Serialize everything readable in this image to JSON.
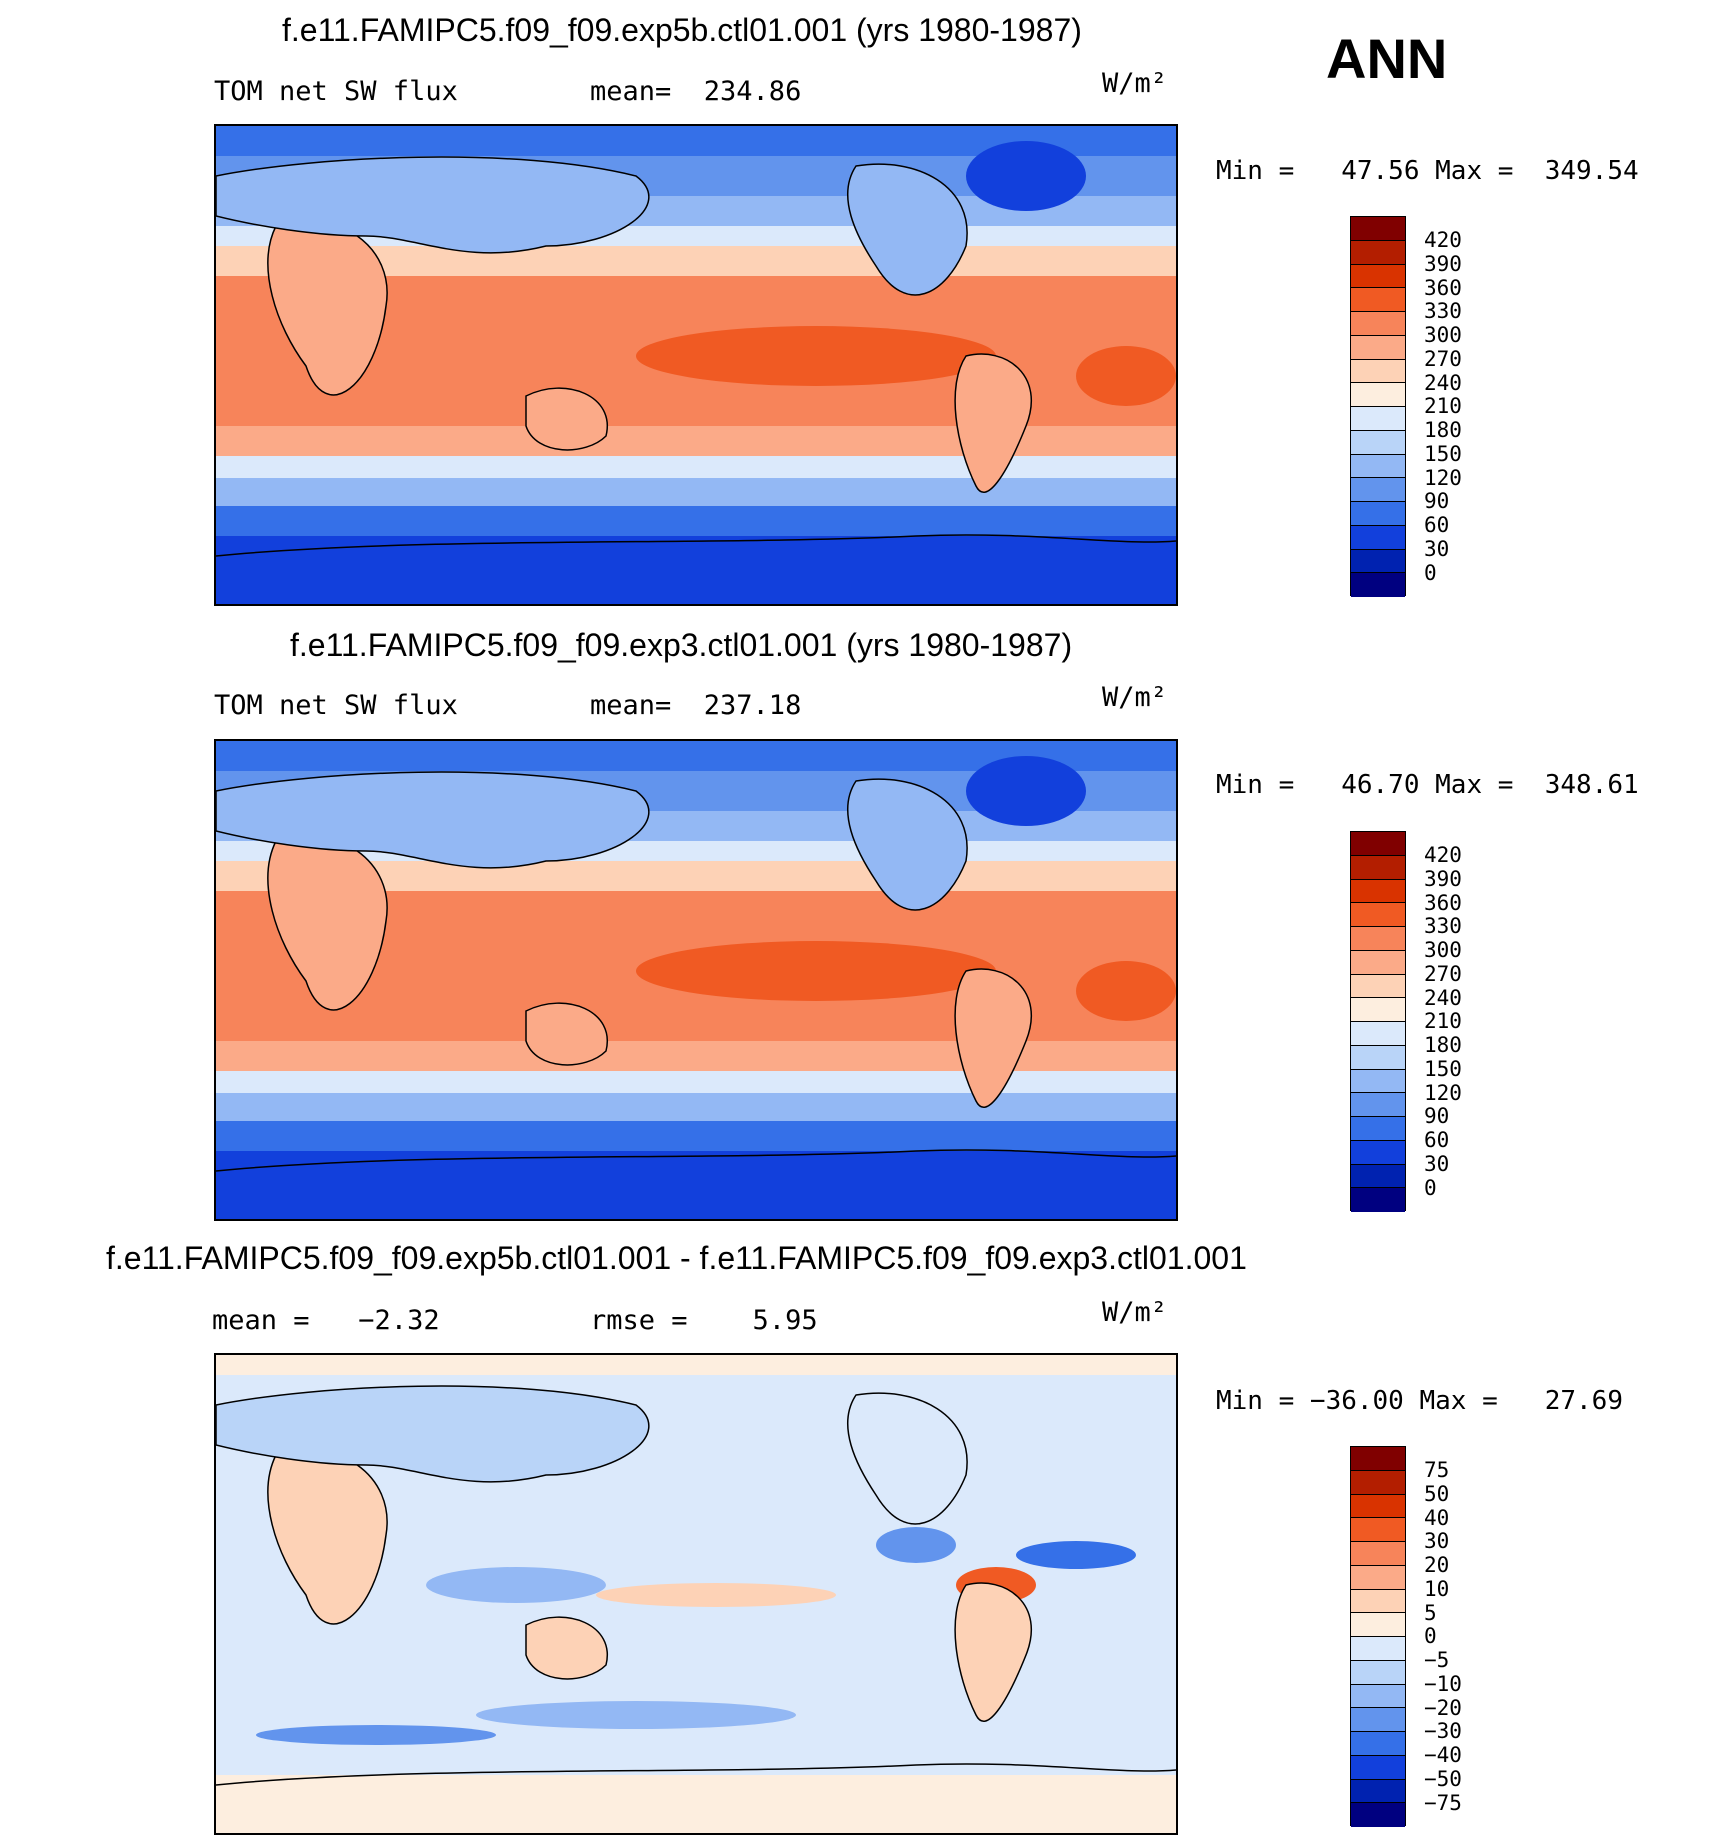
{
  "season": "ANN",
  "units": "W/m²",
  "panels": [
    {
      "title": "f.e11.FAMIPC5.f09_f09.exp5b.ctl01.001 (yrs 1980-1987)",
      "left_label": "TOM net SW flux",
      "right_label": "mean=  234.86",
      "minmax": "Min =   47.56 Max =  349.54",
      "colorbar_labels": [
        "420",
        "390",
        "360",
        "330",
        "300",
        "270",
        "240",
        "210",
        "180",
        "150",
        "120",
        "90",
        "60",
        "30",
        "0"
      ]
    },
    {
      "title": "f.e11.FAMIPC5.f09_f09.exp3.ctl01.001 (yrs 1980-1987)",
      "left_label": "TOM net SW flux",
      "right_label": "mean=  237.18",
      "minmax": "Min =   46.70 Max =  348.61",
      "colorbar_labels": [
        "420",
        "390",
        "360",
        "330",
        "300",
        "270",
        "240",
        "210",
        "180",
        "150",
        "120",
        "90",
        "60",
        "30",
        "0"
      ]
    },
    {
      "title": "f.e11.FAMIPC5.f09_f09.exp5b.ctl01.001 - f.e11.FAMIPC5.f09_f09.exp3.ctl01.001",
      "left_label": "mean =   −2.32",
      "right_label": "rmse =    5.95",
      "minmax": "Min = −36.00 Max =   27.69",
      "colorbar_labels": [
        "75",
        "50",
        "40",
        "30",
        "20",
        "10",
        "5",
        "0",
        "−5",
        "−10",
        "−20",
        "−30",
        "−40",
        "−50",
        "−75"
      ]
    }
  ],
  "colors": {
    "scale": [
      "#800000",
      "#b31e00",
      "#d93300",
      "#f05a23",
      "#f7845a",
      "#fbaa88",
      "#fdd2b6",
      "#fdeedf",
      "#dbe9fb",
      "#b9d4f8",
      "#93b8f4",
      "#6294ed",
      "#3570e8",
      "#1240dc",
      "#0022b0",
      "#000080"
    ]
  }
}
